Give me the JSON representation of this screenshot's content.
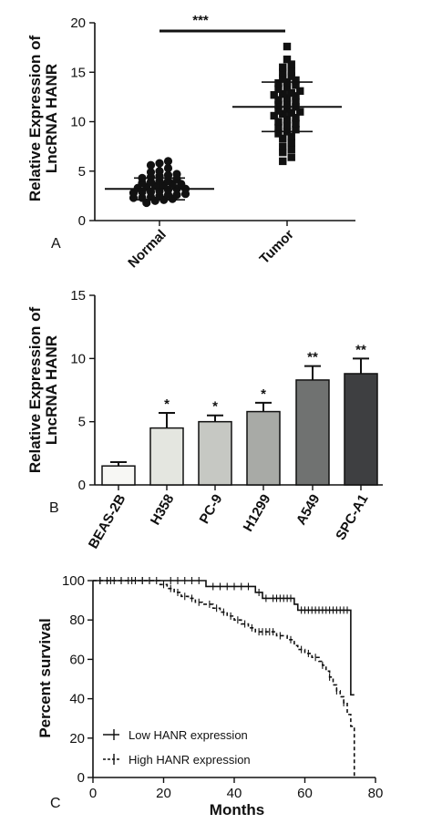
{
  "chart_data": [
    {
      "panel_label": "A",
      "type": "scatter",
      "ylabel_lines": [
        "Relative Expression of",
        "LncRNA HANR"
      ],
      "ylim": [
        0,
        20
      ],
      "yticks": [
        "0",
        "5",
        "10",
        "15",
        "20"
      ],
      "categories": [
        "Normal",
        "Tumor"
      ],
      "significance": "***",
      "series": [
        {
          "values": [
            6.0,
            5.6,
            5.3,
            4.9,
            4.6,
            4.3,
            4.0,
            3.7,
            3.4,
            3.2,
            2.9,
            2.6,
            2.3,
            2.0,
            1.8,
            5.8,
            5.0,
            4.2,
            3.5,
            2.8,
            2.2,
            4.5,
            3.8,
            3.1,
            2.4,
            4.0,
            3.3,
            2.6,
            3.6,
            2.9,
            2.3,
            3.0,
            3.7,
            4.4,
            2.1,
            2.5,
            3.9,
            3.2,
            4.7,
            2.7
          ],
          "mean": 3.2,
          "sd": 1.1
        },
        {
          "values": [
            17.6,
            16.3,
            15.8,
            15.1,
            14.6,
            14.2,
            13.7,
            13.3,
            12.9,
            12.6,
            12.2,
            11.8,
            11.5,
            11.1,
            10.8,
            10.4,
            10.0,
            9.6,
            9.2,
            8.8,
            8.3,
            7.9,
            7.5,
            6.9,
            6.4,
            6.0,
            15.5,
            14.0,
            12.7,
            11.3,
            10.2,
            9.0,
            13.9,
            12.0,
            10.6,
            8.5,
            15.0,
            11.7,
            12.8,
            9.4,
            10.9,
            14.4,
            13.1,
            7.2,
            11.0,
            12.4,
            9.8,
            13.5
          ],
          "mean": 11.5,
          "sd": 2.5
        }
      ]
    },
    {
      "panel_label": "B",
      "type": "bar",
      "ylabel_lines": [
        "Relative Expression of",
        "LncRNA HANR"
      ],
      "ylim": [
        0,
        15
      ],
      "yticks": [
        "0",
        "5",
        "10",
        "15"
      ],
      "categories": [
        "BEAS-2B",
        "H358",
        "PC-9",
        "H1299",
        "A549",
        "SPC-A1"
      ],
      "values": [
        1.5,
        4.5,
        5.0,
        5.8,
        8.3,
        8.8
      ],
      "errors": [
        0.3,
        1.2,
        0.5,
        0.7,
        1.1,
        1.2
      ],
      "significance": [
        "",
        "*",
        "*",
        "*",
        "**",
        "**"
      ],
      "colors": [
        "#f7f7f4",
        "#e4e6e0",
        "#c6c8c3",
        "#a8aaa6",
        "#707271",
        "#3e3f41"
      ]
    },
    {
      "panel_label": "C",
      "type": "line",
      "xlabel": "Months",
      "ylabel": "Percent survival",
      "xlim": [
        0,
        80
      ],
      "ylim": [
        0,
        100
      ],
      "xticks": [
        "0",
        "20",
        "40",
        "60",
        "80"
      ],
      "yticks": [
        "0",
        "20",
        "40",
        "60",
        "80",
        "100"
      ],
      "series": [
        {
          "name": "Low HANR expression",
          "style": "solid",
          "steps": [
            [
              0,
              100
            ],
            [
              20,
              100
            ],
            [
              32,
              97
            ],
            [
              46,
              94
            ],
            [
              48,
              91
            ],
            [
              57,
              88
            ],
            [
              58,
              85
            ],
            [
              73,
              85
            ],
            [
              73,
              42
            ],
            [
              74,
              42
            ]
          ],
          "censor_x": [
            2,
            4,
            6,
            8,
            10,
            12,
            14,
            16,
            18,
            22,
            24,
            26,
            28,
            30,
            34,
            36,
            38,
            40,
            42,
            44,
            47,
            49,
            51,
            52,
            53,
            54,
            55,
            56,
            59,
            60,
            61,
            62,
            63,
            64,
            65,
            66,
            67,
            68,
            69,
            70,
            71,
            72
          ]
        },
        {
          "name": "High HANR expression",
          "style": "dashed",
          "steps": [
            [
              0,
              100
            ],
            [
              18,
              100
            ],
            [
              19,
              98
            ],
            [
              21,
              96
            ],
            [
              23,
              94
            ],
            [
              25,
              92
            ],
            [
              27,
              91
            ],
            [
              29,
              89
            ],
            [
              31,
              88
            ],
            [
              34,
              86
            ],
            [
              36,
              84
            ],
            [
              38,
              82
            ],
            [
              40,
              80
            ],
            [
              42,
              78
            ],
            [
              44,
              76
            ],
            [
              46,
              74
            ],
            [
              52,
              72
            ],
            [
              55,
              70
            ],
            [
              57,
              67
            ],
            [
              58,
              65
            ],
            [
              60,
              63
            ],
            [
              62,
              61
            ],
            [
              64,
              59
            ],
            [
              65,
              57
            ],
            [
              66,
              54
            ],
            [
              67,
              51
            ],
            [
              68,
              47
            ],
            [
              69,
              44
            ],
            [
              70,
              41
            ],
            [
              71,
              38
            ],
            [
              72,
              32
            ],
            [
              73,
              26
            ],
            [
              74,
              0
            ]
          ],
          "censor_x": [
            2,
            5,
            8,
            11,
            14,
            16,
            20,
            22,
            24,
            26,
            28,
            30,
            33,
            35,
            37,
            39,
            41,
            43,
            45,
            47,
            48,
            49,
            50,
            51,
            53,
            56,
            59,
            61,
            63,
            65,
            67,
            69,
            71
          ]
        }
      ]
    }
  ]
}
